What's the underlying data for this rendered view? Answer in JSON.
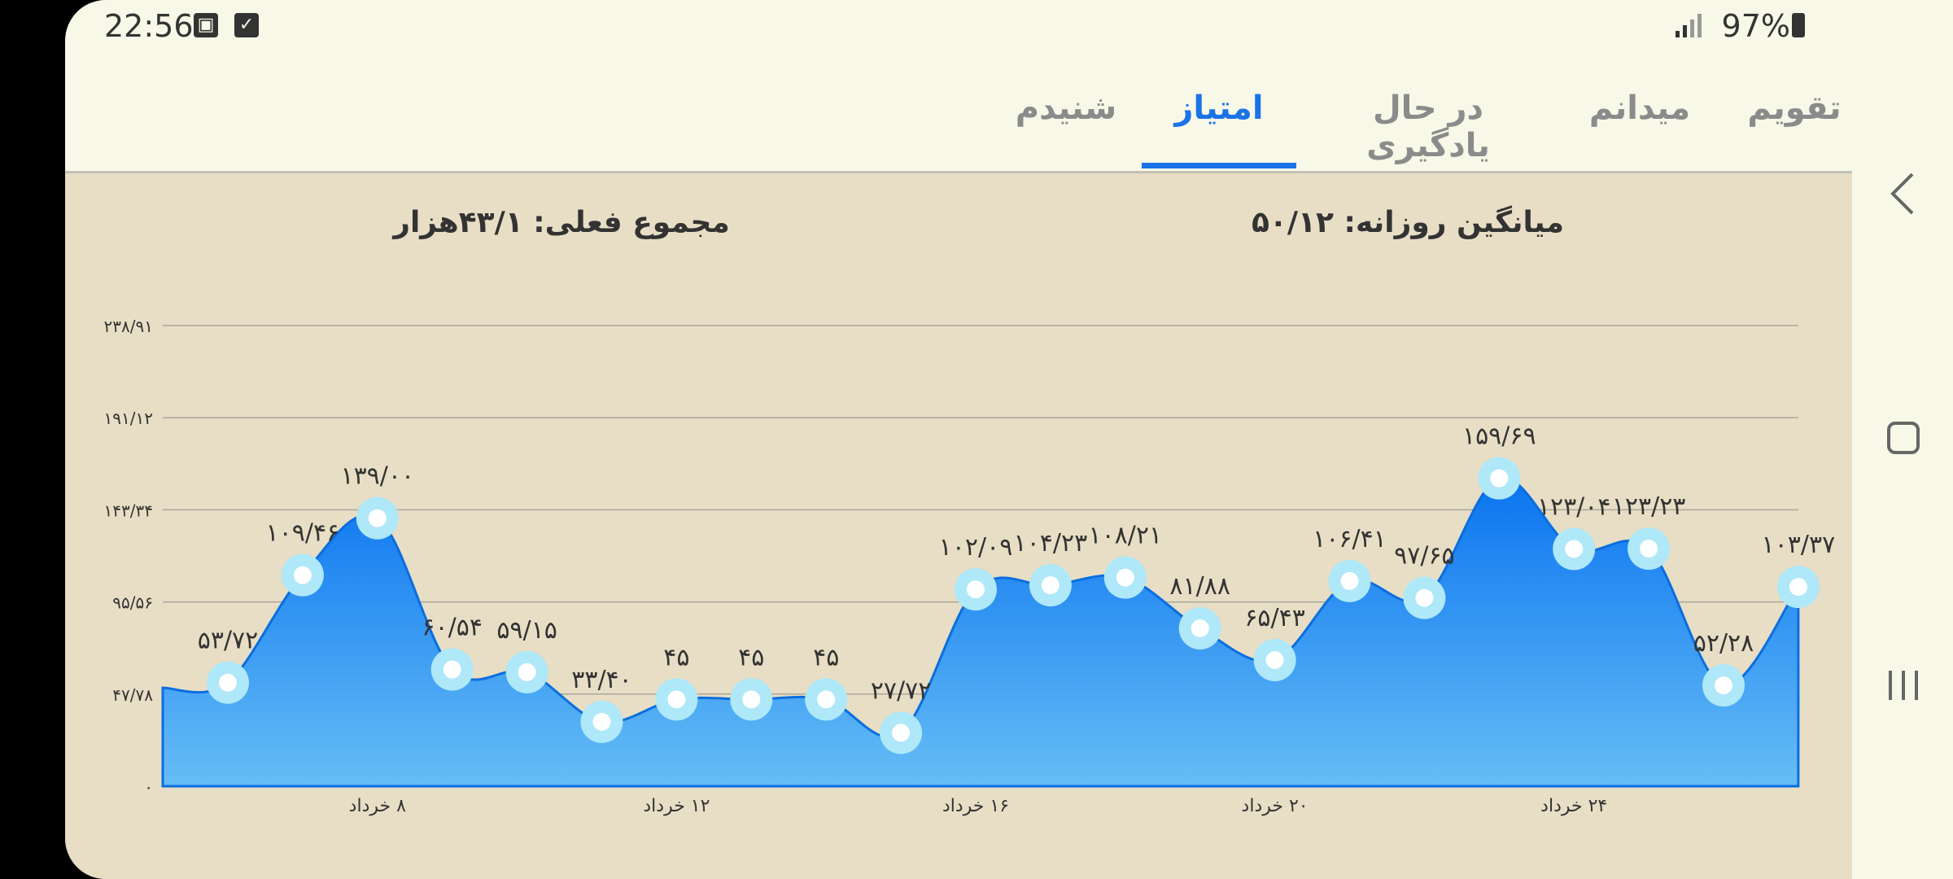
{
  "status_bar": {
    "time": "22:56",
    "icons": [
      "image-icon",
      "check-box-icon"
    ],
    "signal_icon": "signal-icon",
    "battery": "97%"
  },
  "tabs": [
    {
      "label": "تقویم",
      "active": false
    },
    {
      "label": "میدانم",
      "active": false
    },
    {
      "label": "در حال یادگیری",
      "active": false
    },
    {
      "label": "امتیاز",
      "active": true
    },
    {
      "label": "شنیدم",
      "active": false
    }
  ],
  "summary": {
    "daily_average": "میانگین روزانه: ۵۰/۱۲",
    "current_total": "مجموع فعلی: ۴۳/۱هزار"
  },
  "colors": {
    "accent": "#1a73e8",
    "fill_top": "#0a74f0",
    "fill_bottom": "#66bdf5",
    "marker": "#aee8f9"
  },
  "chart_data": {
    "type": "area",
    "y_ticks": [
      {
        "value": 0,
        "label": "۰"
      },
      {
        "value": 47.78,
        "label": "۴۷/۷۸"
      },
      {
        "value": 95.56,
        "label": "۹۵/۵۶"
      },
      {
        "value": 143.34,
        "label": "۱۴۳/۳۴"
      },
      {
        "value": 191.12,
        "label": "۱۹۱/۱۲"
      },
      {
        "value": 238.91,
        "label": "۲۳۸/۹۱"
      }
    ],
    "ylim": [
      0,
      238.91
    ],
    "x_labels": [
      "۸ خرداد",
      "۱۲ خرداد",
      "۱۶ خرداد",
      "۲۰ خرداد",
      "۲۴ خرداد"
    ],
    "leading_value": 51,
    "points": [
      {
        "value": 53.72,
        "label": "۵۳/۷۲"
      },
      {
        "value": 109.46,
        "label": "۱۰۹/۴۶"
      },
      {
        "value": 139.0,
        "label": "۱۳۹/۰۰"
      },
      {
        "value": 60.54,
        "label": "۶۰/۵۴"
      },
      {
        "value": 59.15,
        "label": "۵۹/۱۵"
      },
      {
        "value": 33.4,
        "label": "۳۳/۴۰"
      },
      {
        "value": 45,
        "label": "۴۵"
      },
      {
        "value": 45,
        "label": "۴۵"
      },
      {
        "value": 45,
        "label": "۴۵"
      },
      {
        "value": 27.72,
        "label": "۲۷/۷۲"
      },
      {
        "value": 102.09,
        "label": "۱۰۲/۰۹"
      },
      {
        "value": 104.23,
        "label": "۱۰۴/۲۳"
      },
      {
        "value": 108.21,
        "label": "۱۰۸/۲۱"
      },
      {
        "value": 81.88,
        "label": "۸۱/۸۸"
      },
      {
        "value": 65.43,
        "label": "۶۵/۴۳"
      },
      {
        "value": 106.41,
        "label": "۱۰۶/۴۱"
      },
      {
        "value": 97.65,
        "label": "۹۷/۶۵"
      },
      {
        "value": 159.69,
        "label": "۱۵۹/۶۹"
      },
      {
        "value": 123.04,
        "label": "۱۲۳/۰۴"
      },
      {
        "value": 123.23,
        "label": "۱۲۳/۲۳"
      },
      {
        "value": 52.28,
        "label": "۵۲/۲۸"
      },
      {
        "value": 103.37,
        "label": "۱۰۳/۳۷"
      }
    ],
    "grid": true
  },
  "nav_bar": {
    "icons": [
      "back-chevron-icon",
      "home-square-icon",
      "recents-icon"
    ]
  }
}
